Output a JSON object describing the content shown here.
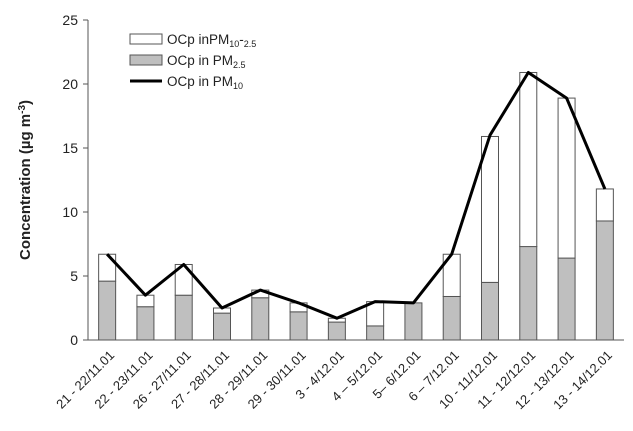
{
  "chart_data": {
    "type": "bar",
    "stacked": true,
    "ylabel": "Concentration (µg m",
    "ylabel_sup": "-3",
    "ylabel_close": ")",
    "ylim": [
      0,
      25
    ],
    "yticks": [
      0,
      5,
      10,
      15,
      20,
      25
    ],
    "grid": false,
    "legend_position": "top-left",
    "categories": [
      "21 - 22/11.01",
      "22 - 23/11.01",
      "26 - 27/11.01",
      "27 - 28/11.01",
      "28 - 29/11.01",
      "29 - 30/11.01",
      "3 - 4/12.01",
      "4 – 5/12.01",
      "5– 6/12.01",
      "6 – 7/12.01",
      "10 - 11/12.01",
      "11 - 12/12.01",
      "12 - 13/12.01",
      "13 - 14/12.01"
    ],
    "series": [
      {
        "name": "OCp inPM10-2.5",
        "type": "bar",
        "color": "#ffffff",
        "values": [
          2.1,
          0.9,
          2.4,
          0.4,
          0.6,
          0.7,
          0.3,
          1.9,
          0.0,
          3.3,
          11.4,
          13.6,
          12.5,
          2.5
        ]
      },
      {
        "name": "OCp in PM2.5",
        "type": "bar",
        "color": "#bfbfbf",
        "values": [
          4.6,
          2.6,
          3.5,
          2.1,
          3.3,
          2.2,
          1.4,
          1.1,
          2.9,
          3.4,
          4.5,
          7.3,
          6.4,
          9.3
        ]
      },
      {
        "name": "OCp in PM10",
        "type": "line",
        "color": "#000000",
        "values": [
          6.7,
          3.5,
          5.9,
          2.5,
          3.9,
          2.9,
          1.7,
          3.0,
          2.9,
          6.7,
          16.0,
          20.9,
          18.9,
          11.8
        ]
      }
    ],
    "legend": [
      {
        "text": "OCp inPM",
        "sub": "10",
        "text2": "-",
        "sub2": "2.5",
        "kind": "bar-white"
      },
      {
        "text": "OCp in PM",
        "sub": "2.5",
        "text2": "",
        "sub2": "",
        "kind": "bar-gray"
      },
      {
        "text": "OCp in PM",
        "sub": "10",
        "text2": "",
        "sub2": "",
        "kind": "line"
      }
    ]
  }
}
